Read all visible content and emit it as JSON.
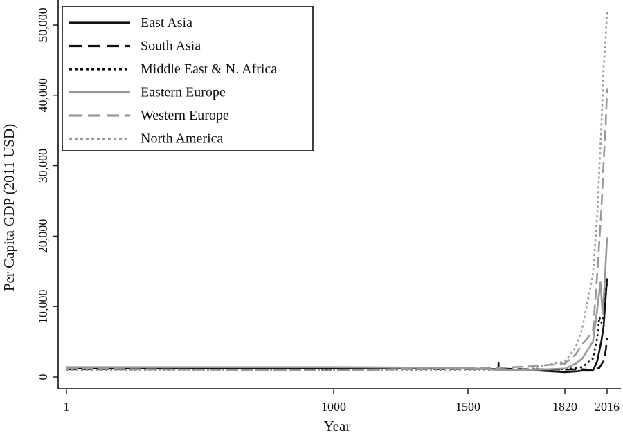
{
  "chart_data": {
    "type": "line",
    "title": "",
    "xlabel": "Year",
    "ylabel": "Per Capita GDP (2011 USD)",
    "x_scale_note": "piecewise",
    "x_ticks": [
      1,
      1000,
      1500,
      1820,
      2016
    ],
    "x_tick_labels": [
      "1",
      "1000",
      "1500",
      "1820",
      "2016"
    ],
    "y_ticks": [
      0,
      10000,
      20000,
      30000,
      40000,
      50000
    ],
    "y_tick_labels": [
      "0",
      "10,000",
      "20,000",
      "30,000",
      "40,000",
      "50,000"
    ],
    "ylim": [
      0,
      52000
    ],
    "grid": false,
    "legend_position": "top-left",
    "series": [
      {
        "name": "East Asia",
        "color": "#111111",
        "dash": "solid",
        "points": [
          [
            1,
            1300
          ],
          [
            1000,
            1300
          ],
          [
            1500,
            1200
          ],
          [
            1600,
            1100
          ],
          [
            1700,
            1000
          ],
          [
            1820,
            700
          ],
          [
            1870,
            800
          ],
          [
            1900,
            900
          ],
          [
            1950,
            900
          ],
          [
            1970,
            2200
          ],
          [
            1990,
            5200
          ],
          [
            2000,
            7200
          ],
          [
            2010,
            11500
          ],
          [
            2016,
            14000
          ]
        ]
      },
      {
        "name": "South Asia",
        "color": "#111111",
        "dash": "long",
        "points": [
          [
            1,
            1100
          ],
          [
            1000,
            1100
          ],
          [
            1500,
            1150
          ],
          [
            1600,
            1200
          ],
          [
            1601,
            2000
          ],
          [
            1602,
            1200
          ],
          [
            1700,
            1100
          ],
          [
            1820,
            1050
          ],
          [
            1900,
            1100
          ],
          [
            1950,
            1000
          ],
          [
            1980,
            1300
          ],
          [
            2000,
            2300
          ],
          [
            2010,
            3800
          ],
          [
            2016,
            5500
          ]
        ]
      },
      {
        "name": "Middle East & N. Africa",
        "color": "#111111",
        "dash": "dotted",
        "points": [
          [
            1,
            1000
          ],
          [
            1000,
            1000
          ],
          [
            1500,
            1100
          ],
          [
            1700,
            1100
          ],
          [
            1820,
            1100
          ],
          [
            1900,
            1400
          ],
          [
            1950,
            2600
          ],
          [
            1970,
            5500
          ],
          [
            1980,
            8500
          ],
          [
            1990,
            7700
          ],
          [
            2000,
            8700
          ],
          [
            2010,
            12500
          ],
          [
            2016,
            13200
          ]
        ]
      },
      {
        "name": "Eastern Europe",
        "color": "#999999",
        "dash": "solid",
        "points": [
          [
            1,
            1400
          ],
          [
            1000,
            1400
          ],
          [
            1500,
            1300
          ],
          [
            1600,
            1000
          ],
          [
            1700,
            1000
          ],
          [
            1820,
            1200
          ],
          [
            1870,
            1900
          ],
          [
            1900,
            2600
          ],
          [
            1950,
            5000
          ],
          [
            1970,
            9500
          ],
          [
            1985,
            13500
          ],
          [
            1995,
            9000
          ],
          [
            2005,
            13500
          ],
          [
            2016,
            19800
          ]
        ]
      },
      {
        "name": "Western Europe",
        "color": "#999999",
        "dash": "long",
        "points": [
          [
            1,
            1200
          ],
          [
            1000,
            900
          ],
          [
            1500,
            1300
          ],
          [
            1600,
            1300
          ],
          [
            1700,
            1500
          ],
          [
            1820,
            1900
          ],
          [
            1870,
            3200
          ],
          [
            1900,
            4600
          ],
          [
            1950,
            6500
          ],
          [
            1970,
            14500
          ],
          [
            1990,
            24000
          ],
          [
            2000,
            30500
          ],
          [
            2010,
            36000
          ],
          [
            2016,
            41000
          ]
        ]
      },
      {
        "name": "North America",
        "color": "#999999",
        "dash": "dotted",
        "points": [
          [
            1,
            1000
          ],
          [
            1000,
            1000
          ],
          [
            1500,
            1000
          ],
          [
            1600,
            1000
          ],
          [
            1700,
            1200
          ],
          [
            1820,
            2200
          ],
          [
            1870,
            4200
          ],
          [
            1900,
            6800
          ],
          [
            1950,
            14500
          ],
          [
            1970,
            23000
          ],
          [
            1990,
            36000
          ],
          [
            2000,
            44000
          ],
          [
            2010,
            48500
          ],
          [
            2016,
            52000
          ]
        ]
      }
    ]
  }
}
